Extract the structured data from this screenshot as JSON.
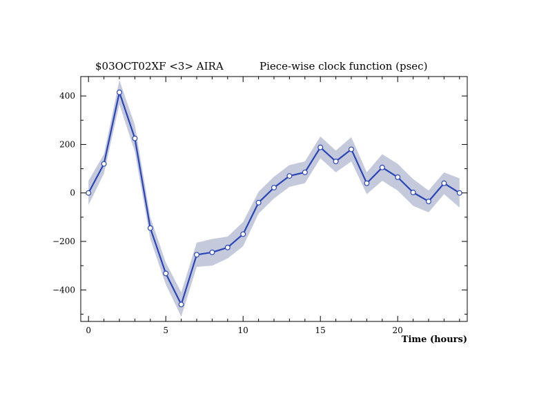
{
  "chart_data": {
    "type": "line",
    "title_left": "$03OCT02XF <3>  AIRA",
    "title_right": "Piece-wise clock function (psec)",
    "xlabel": "Time (hours)",
    "ylabel": "",
    "xlim": [
      -0.5,
      24.5
    ],
    "ylim": [
      -530,
      480
    ],
    "x_ticks": [
      0,
      5,
      10,
      15,
      20
    ],
    "y_ticks": [
      -400,
      -200,
      0,
      200,
      400
    ],
    "grid": false,
    "colors": {
      "line": "#2a44b8",
      "band": "#c4c9dc",
      "marker_fill": "#ffffff"
    },
    "series": [
      {
        "x": [
          0,
          1,
          2,
          3,
          4,
          5,
          6,
          7,
          8,
          9,
          10,
          11,
          12,
          13,
          14,
          15,
          16,
          17,
          18,
          19,
          20,
          21,
          22,
          23,
          24
        ],
        "y": [
          0,
          120,
          415,
          225,
          -145,
          -332,
          -460,
          -255,
          -245,
          -225,
          -170,
          -40,
          22,
          70,
          85,
          188,
          130,
          180,
          40,
          105,
          65,
          2,
          -35,
          40,
          0
        ],
        "error": [
          50,
          40,
          50,
          55,
          45,
          45,
          50,
          50,
          55,
          45,
          50,
          45,
          45,
          45,
          45,
          45,
          45,
          50,
          45,
          55,
          55,
          55,
          45,
          45,
          60
        ]
      }
    ]
  }
}
